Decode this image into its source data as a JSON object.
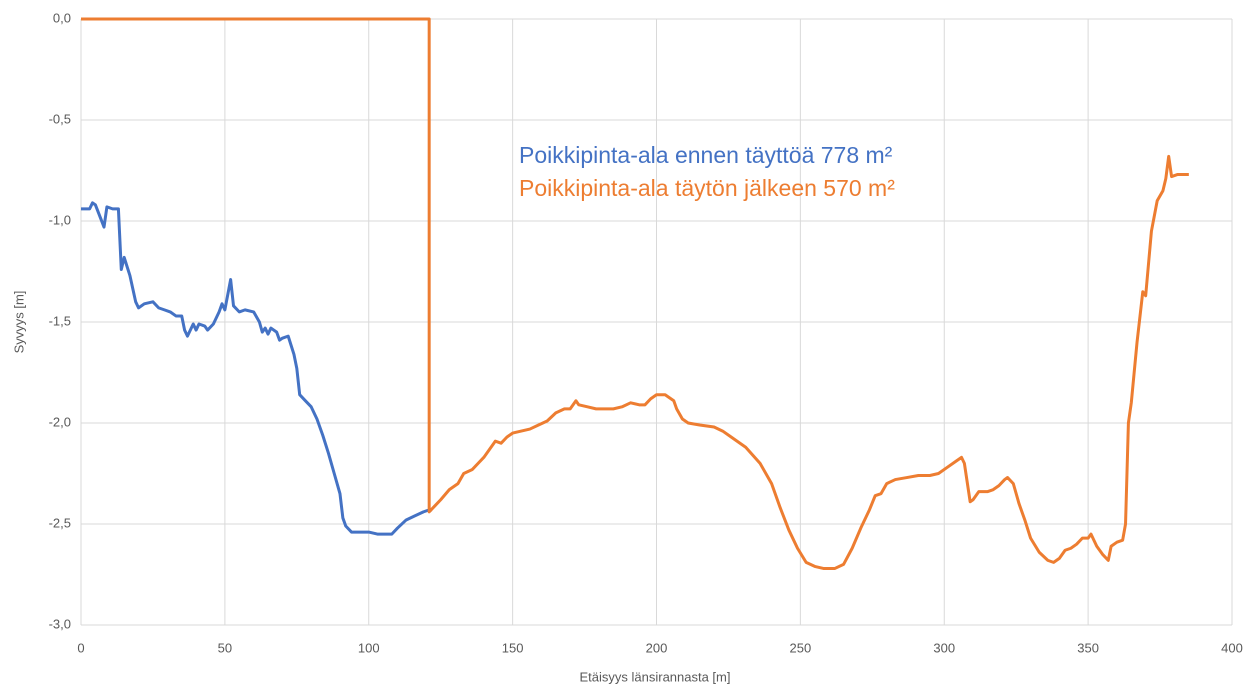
{
  "chart_data": {
    "type": "line",
    "xlabel": "Etäisyys länsirannasta [m]",
    "ylabel": "Syvyys [m]",
    "xlim": [
      0,
      400
    ],
    "xticks": [
      0,
      50,
      100,
      150,
      200,
      250,
      300,
      350,
      400
    ],
    "ylim": [
      -3,
      0
    ],
    "yticks": [
      {
        "value": 0,
        "label": "0,0"
      },
      {
        "value": -0.5,
        "label": "-0,5"
      },
      {
        "value": -1,
        "label": "-1,0"
      },
      {
        "value": -1.5,
        "label": "-1,5"
      },
      {
        "value": -2,
        "label": "-2,0"
      },
      {
        "value": -2.5,
        "label": "-2,5"
      },
      {
        "value": -3,
        "label": "-3,0"
      }
    ],
    "grid": true,
    "annotations": [
      {
        "text": "Poikkipinta-ala ennen täyttöä 778 m²",
        "color": "#4472c4"
      },
      {
        "text": "Poikkipinta-ala täytön jälkeen 570 m²",
        "color": "#ed7d31"
      }
    ],
    "series": [
      {
        "color": "#4472c4",
        "x": [
          0,
          3,
          4,
          5,
          8,
          9,
          11,
          13,
          14,
          15,
          17,
          19,
          20,
          22,
          25,
          27,
          29,
          31,
          33,
          35,
          36,
          37,
          39,
          40,
          41,
          43,
          44,
          46,
          48,
          49,
          50,
          52,
          53,
          55,
          57,
          60,
          62,
          63,
          64,
          65,
          66,
          68,
          69,
          70,
          72,
          74,
          75,
          76,
          78,
          80,
          82,
          84,
          86,
          88,
          90,
          91,
          92,
          94,
          97,
          100,
          103,
          106,
          108,
          110,
          113,
          116,
          119,
          121,
          122
        ],
        "values": [
          -0.94,
          -0.94,
          -0.91,
          -0.92,
          -1.03,
          -0.93,
          -0.94,
          -0.94,
          -1.24,
          -1.18,
          -1.27,
          -1.4,
          -1.43,
          -1.41,
          -1.4,
          -1.43,
          -1.44,
          -1.45,
          -1.47,
          -1.47,
          -1.54,
          -1.57,
          -1.51,
          -1.54,
          -1.51,
          -1.52,
          -1.54,
          -1.51,
          -1.45,
          -1.41,
          -1.44,
          -1.29,
          -1.42,
          -1.45,
          -1.44,
          -1.45,
          -1.5,
          -1.55,
          -1.53,
          -1.56,
          -1.53,
          -1.55,
          -1.59,
          -1.58,
          -1.57,
          -1.66,
          -1.73,
          -1.86,
          -1.89,
          -1.92,
          -1.98,
          -2.06,
          -2.15,
          -2.25,
          -2.35,
          -2.47,
          -2.51,
          -2.54,
          -2.54,
          -2.54,
          -2.55,
          -2.55,
          -2.55,
          -2.52,
          -2.48,
          -2.46,
          -2.44,
          -2.43,
          -2.43
        ]
      },
      {
        "color": "#ed7d31",
        "x": [
          0,
          121,
          121,
          123,
          125,
          128,
          131,
          133,
          136,
          138,
          140,
          142,
          144,
          146,
          148,
          150,
          153,
          156,
          159,
          162,
          165,
          168,
          170,
          172,
          173,
          176,
          179,
          182,
          185,
          188,
          191,
          194,
          196,
          198,
          200,
          203,
          206,
          207,
          209,
          211,
          215,
          220,
          223,
          226,
          231,
          236,
          240,
          243,
          246,
          249,
          252,
          255,
          258,
          262,
          265,
          268,
          271,
          274,
          276,
          278,
          280,
          283,
          287,
          291,
          295,
          298,
          301,
          304,
          306,
          307,
          309,
          310,
          312,
          315,
          317,
          319,
          321,
          322,
          324,
          326,
          328,
          330,
          333,
          336,
          338,
          340,
          342,
          344,
          346,
          348,
          350,
          351,
          353,
          355,
          357,
          358,
          360,
          362,
          363,
          364,
          365,
          367,
          369,
          370,
          372,
          374,
          376,
          377,
          378,
          379,
          381,
          385
        ],
        "values": [
          0,
          0,
          -2.44,
          -2.41,
          -2.38,
          -2.33,
          -2.3,
          -2.25,
          -2.23,
          -2.2,
          -2.17,
          -2.13,
          -2.09,
          -2.1,
          -2.07,
          -2.05,
          -2.04,
          -2.03,
          -2.01,
          -1.99,
          -1.95,
          -1.93,
          -1.93,
          -1.89,
          -1.91,
          -1.92,
          -1.93,
          -1.93,
          -1.93,
          -1.92,
          -1.9,
          -1.91,
          -1.91,
          -1.88,
          -1.86,
          -1.86,
          -1.89,
          -1.93,
          -1.98,
          -2,
          -2.01,
          -2.02,
          -2.04,
          -2.07,
          -2.12,
          -2.2,
          -2.3,
          -2.42,
          -2.53,
          -2.62,
          -2.69,
          -2.71,
          -2.72,
          -2.72,
          -2.7,
          -2.62,
          -2.52,
          -2.43,
          -2.36,
          -2.35,
          -2.3,
          -2.28,
          -2.27,
          -2.26,
          -2.26,
          -2.25,
          -2.22,
          -2.19,
          -2.17,
          -2.2,
          -2.39,
          -2.38,
          -2.34,
          -2.34,
          -2.33,
          -2.31,
          -2.28,
          -2.27,
          -2.3,
          -2.4,
          -2.48,
          -2.57,
          -2.64,
          -2.68,
          -2.69,
          -2.67,
          -2.63,
          -2.62,
          -2.6,
          -2.57,
          -2.57,
          -2.55,
          -2.61,
          -2.65,
          -2.68,
          -2.61,
          -2.59,
          -2.58,
          -2.5,
          -2,
          -1.9,
          -1.6,
          -1.35,
          -1.37,
          -1.05,
          -0.9,
          -0.85,
          -0.79,
          -0.68,
          -0.78,
          -0.77,
          -0.77
        ]
      }
    ]
  }
}
